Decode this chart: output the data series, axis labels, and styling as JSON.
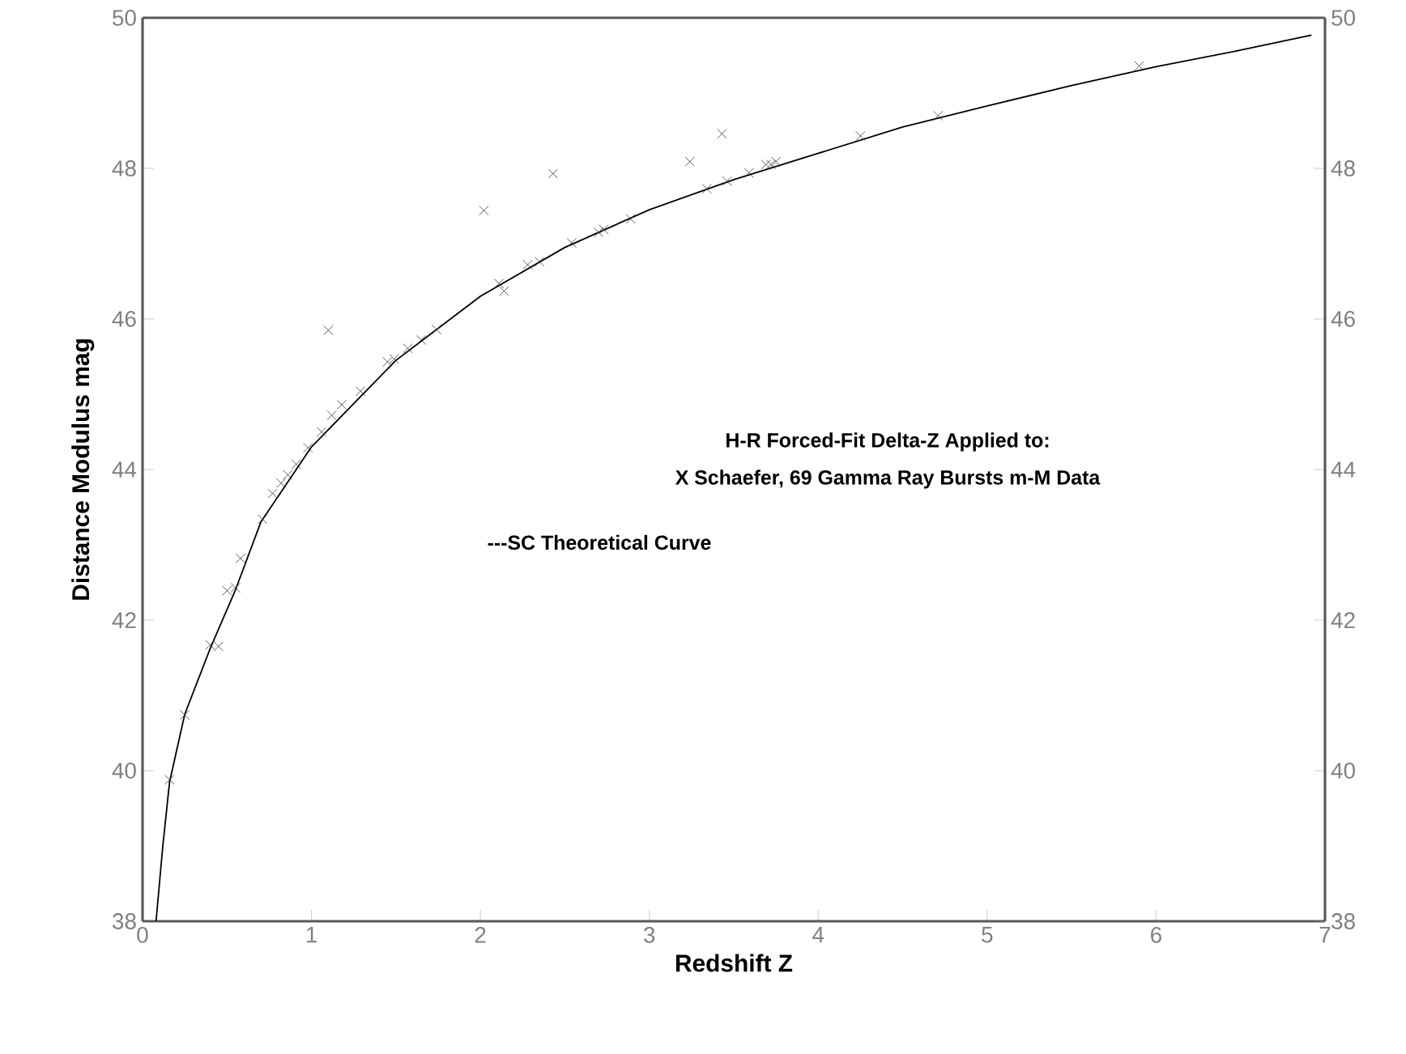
{
  "chart_data": {
    "type": "scatter",
    "xlabel": "Redshift  Z",
    "ylabel": "Distance Modulus mag",
    "annotations": [
      "H-R Forced-Fit Delta-Z Applied to:",
      "X Schaefer, 69 Gamma Ray Bursts m-M Data",
      "---SC Theoretical Curve"
    ],
    "xlim": [
      0,
      7
    ],
    "xticks": [
      0,
      1,
      2,
      3,
      4,
      5,
      6,
      7
    ],
    "ylim": [
      38,
      50
    ],
    "yticks": [
      38,
      40,
      42,
      44,
      46,
      48,
      50
    ],
    "y2lim": [
      38,
      50
    ],
    "y2ticks": [
      38,
      40,
      42,
      44,
      46,
      48,
      50
    ],
    "grid": false,
    "series": [
      {
        "marker": "cross",
        "color": "#333333",
        "x": [
          0.16,
          0.25,
          0.4,
          0.45,
          0.5,
          0.55,
          0.58,
          0.71,
          0.77,
          0.82,
          0.86,
          0.91,
          0.98,
          1.06,
          1.12,
          1.18,
          1.29,
          1.45,
          1.49,
          1.57,
          1.65,
          1.74,
          1.1,
          2.11,
          2.14,
          2.28,
          2.35,
          2.54,
          2.7,
          2.73,
          2.89,
          2.02,
          2.43,
          3.24,
          3.43,
          3.34,
          3.46,
          3.59,
          3.69,
          3.72,
          3.75,
          4.25,
          4.71,
          5.9
        ],
        "values": [
          39.88,
          40.74,
          41.67,
          41.65,
          42.39,
          42.43,
          42.82,
          43.34,
          43.68,
          43.82,
          43.93,
          44.07,
          44.29,
          44.5,
          44.72,
          44.86,
          45.04,
          45.43,
          45.47,
          45.61,
          45.72,
          45.86,
          45.85,
          46.47,
          46.37,
          46.72,
          46.76,
          47.01,
          47.15,
          47.19,
          47.33,
          47.44,
          47.93,
          48.09,
          48.46,
          47.73,
          47.83,
          47.94,
          48.05,
          48.05,
          48.09,
          48.43,
          48.7,
          49.36
        ]
      },
      {
        "type": "line",
        "marker": "none",
        "line_style": "solid",
        "color": "#000000",
        "x": [
          0.08,
          0.12,
          0.16,
          0.25,
          0.4,
          0.55,
          0.7,
          1.0,
          1.5,
          2.0,
          2.5,
          3.0,
          3.5,
          4.0,
          4.5,
          5.0,
          5.5,
          6.0,
          6.5,
          6.92
        ],
        "values": [
          38.0,
          39.0,
          39.85,
          40.75,
          41.62,
          42.4,
          43.3,
          44.3,
          45.45,
          46.3,
          46.95,
          47.45,
          47.85,
          48.2,
          48.55,
          48.83,
          49.1,
          49.35,
          49.57,
          49.77
        ]
      }
    ]
  }
}
